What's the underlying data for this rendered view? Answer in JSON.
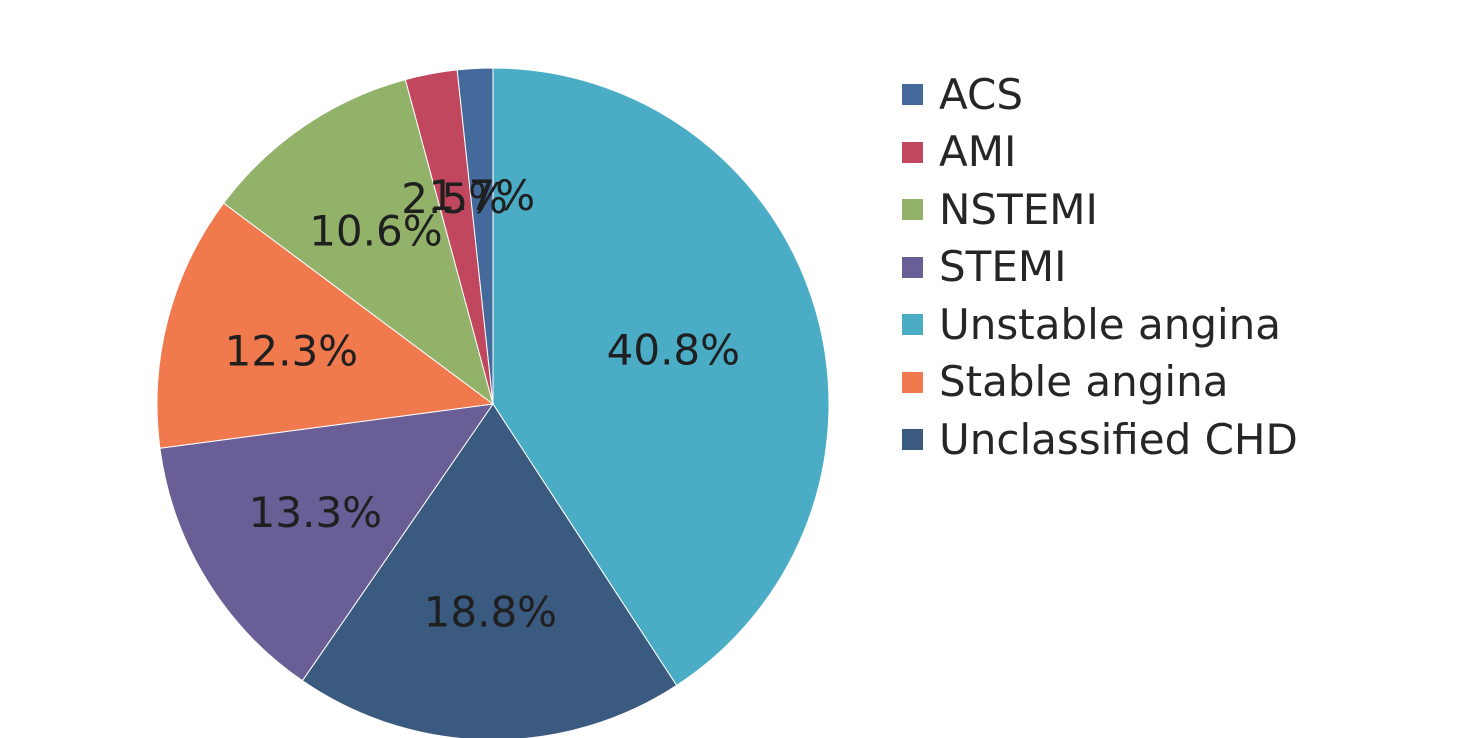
{
  "chart_data": {
    "type": "pie",
    "title": "",
    "start_angle_deg": 0,
    "direction": "clockwise",
    "legend_placement": "right",
    "slices": [
      {
        "name": "Unstable angina",
        "value": 40.8,
        "label": "40.8%",
        "color": "#4bacc6"
      },
      {
        "name": "Unclassified CHD",
        "value": 18.8,
        "label": "18.8%",
        "color": "#3b5a7f"
      },
      {
        "name": "STEMI",
        "value": 13.3,
        "label": "13.3%",
        "color": "#6a5e97"
      },
      {
        "name": "Stable angina",
        "value": 12.3,
        "label": "12.3%",
        "color": "#f07a4e"
      },
      {
        "name": "NSTEMI",
        "value": 10.6,
        "label": "10.6%",
        "color": "#92b26a"
      },
      {
        "name": "AMI",
        "value": 2.5,
        "label": "2.5%",
        "color": "#c0475e"
      },
      {
        "name": "ACS",
        "value": 1.7,
        "label": "1.7%",
        "color": "#436a9a"
      }
    ],
    "legend": [
      {
        "label": "ACS",
        "color": "#436a9a"
      },
      {
        "label": "AMI",
        "color": "#c0475e"
      },
      {
        "label": "NSTEMI",
        "color": "#92b26a"
      },
      {
        "label": "STEMI",
        "color": "#6a5e97"
      },
      {
        "label": "Unstable angina",
        "color": "#4bacc6"
      },
      {
        "label": "Stable angina",
        "color": "#f07a4e"
      },
      {
        "label": "Unclassified CHD",
        "color": "#3b5a7f"
      }
    ]
  }
}
